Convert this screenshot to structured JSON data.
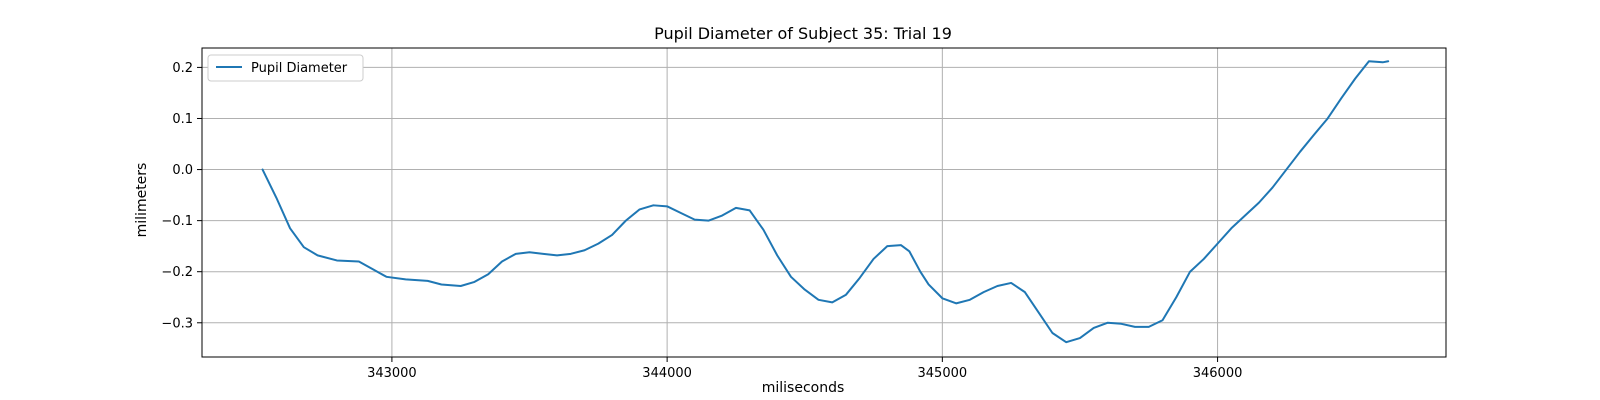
{
  "chart_data": {
    "type": "line",
    "title": "Pupil Diameter of Subject 35: Trial 19",
    "xlabel": "miliseconds",
    "ylabel": "milimeters",
    "xlim": [
      342310,
      346830
    ],
    "ylim": [
      -0.367,
      0.238
    ],
    "xticks": [
      343000,
      344000,
      345000,
      346000
    ],
    "yticks": [
      -0.3,
      -0.2,
      -0.1,
      0.0,
      0.1,
      0.2
    ],
    "xtick_labels": [
      "343000",
      "344000",
      "345000",
      "346000"
    ],
    "ytick_labels": [
      "−0.3",
      "−0.2",
      "−0.1",
      "0.0",
      "0.1",
      "0.2"
    ],
    "grid": true,
    "legend_position": "top-left",
    "series": [
      {
        "name": "Pupil Diameter",
        "color": "#1f77b4",
        "x": [
          342530,
          342580,
          342630,
          342680,
          342730,
          342800,
          342880,
          342930,
          342980,
          343050,
          343130,
          343180,
          343250,
          343300,
          343350,
          343400,
          343450,
          343500,
          343550,
          343600,
          343650,
          343700,
          343750,
          343800,
          343850,
          343900,
          343950,
          344000,
          344050,
          344100,
          344150,
          344200,
          344250,
          344300,
          344350,
          344400,
          344450,
          344500,
          344550,
          344600,
          344650,
          344700,
          344750,
          344800,
          344850,
          344880,
          344920,
          344950,
          345000,
          345050,
          345100,
          345150,
          345200,
          345250,
          345300,
          345350,
          345400,
          345450,
          345500,
          345550,
          345600,
          345650,
          345700,
          345750,
          345800,
          345850,
          345900,
          345950,
          346000,
          346050,
          346100,
          346150,
          346200,
          346250,
          346300,
          346350,
          346400,
          346450,
          346500,
          346550,
          346600,
          346620
        ],
        "y": [
          0.0,
          -0.055,
          -0.115,
          -0.152,
          -0.168,
          -0.178,
          -0.18,
          -0.195,
          -0.21,
          -0.215,
          -0.218,
          -0.225,
          -0.228,
          -0.22,
          -0.205,
          -0.18,
          -0.165,
          -0.162,
          -0.165,
          -0.168,
          -0.165,
          -0.158,
          -0.145,
          -0.128,
          -0.1,
          -0.078,
          -0.07,
          -0.072,
          -0.085,
          -0.098,
          -0.1,
          -0.09,
          -0.075,
          -0.08,
          -0.118,
          -0.168,
          -0.21,
          -0.235,
          -0.255,
          -0.26,
          -0.245,
          -0.212,
          -0.175,
          -0.15,
          -0.148,
          -0.16,
          -0.2,
          -0.225,
          -0.252,
          -0.262,
          -0.255,
          -0.24,
          -0.228,
          -0.222,
          -0.24,
          -0.28,
          -0.32,
          -0.338,
          -0.33,
          -0.31,
          -0.3,
          -0.302,
          -0.308,
          -0.308,
          -0.295,
          -0.25,
          -0.2,
          -0.175,
          -0.145,
          -0.115,
          -0.09,
          -0.065,
          -0.035,
          0.0,
          0.035,
          0.068,
          0.1,
          0.14,
          0.178,
          0.212,
          0.21,
          0.212
        ]
      }
    ]
  }
}
